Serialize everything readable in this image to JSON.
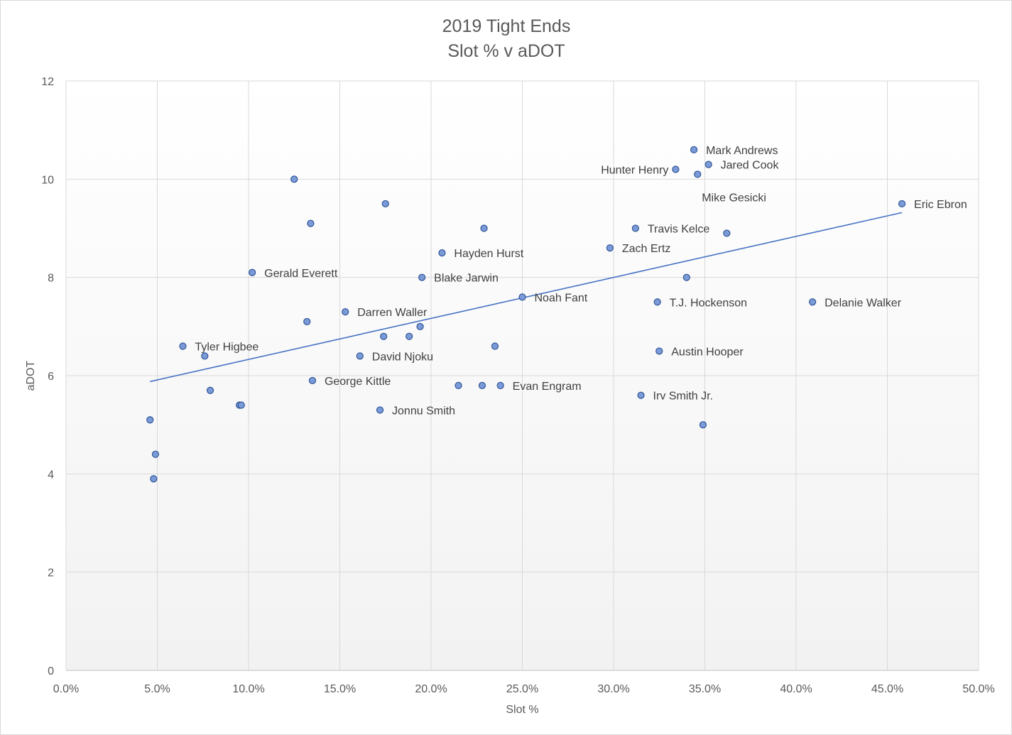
{
  "chart_data": {
    "type": "scatter",
    "title": [
      "2019 Tight Ends",
      "Slot % v aDOT"
    ],
    "xlabel": "Slot %",
    "ylabel": "aDOT",
    "xlim": [
      0,
      50
    ],
    "ylim": [
      0,
      12
    ],
    "x_ticks": [
      0,
      5,
      10,
      15,
      20,
      25,
      30,
      35,
      40,
      45,
      50
    ],
    "x_tick_labels": [
      "0.0%",
      "5.0%",
      "10.0%",
      "15.0%",
      "20.0%",
      "25.0%",
      "30.0%",
      "35.0%",
      "40.0%",
      "45.0%",
      "50.0%"
    ],
    "y_ticks": [
      0,
      2,
      4,
      6,
      8,
      10,
      12
    ],
    "y_tick_labels": [
      "0",
      "2",
      "4",
      "6",
      "8",
      "10",
      "12"
    ],
    "grid": true,
    "marker_color": "#7b9bd8",
    "marker_edge": "#2f5597",
    "trendline": {
      "type": "linear",
      "x": [
        4.6,
        45.8
      ],
      "y": [
        5.88,
        9.32
      ],
      "color": "#4472c4"
    },
    "points": [
      {
        "x": 34.4,
        "y": 10.6,
        "label": "Mark Andrews",
        "pos": "right"
      },
      {
        "x": 35.2,
        "y": 10.3,
        "label": "Jared Cook",
        "pos": "right"
      },
      {
        "x": 33.4,
        "y": 10.2,
        "label": "Hunter Henry",
        "pos": "left"
      },
      {
        "x": 34.6,
        "y": 10.1,
        "label": "Mike Gesicki",
        "pos": "below"
      },
      {
        "x": 45.8,
        "y": 9.5,
        "label": "Eric Ebron",
        "pos": "right"
      },
      {
        "x": 31.2,
        "y": 9.0,
        "label": "Travis Kelce",
        "pos": "right"
      },
      {
        "x": 36.2,
        "y": 8.9,
        "label": "",
        "pos": "right"
      },
      {
        "x": 29.8,
        "y": 8.6,
        "label": "Zach Ertz",
        "pos": "right"
      },
      {
        "x": 34.0,
        "y": 8.0,
        "label": "",
        "pos": "right"
      },
      {
        "x": 25.0,
        "y": 7.6,
        "label": "Noah Fant",
        "pos": "right"
      },
      {
        "x": 32.4,
        "y": 7.5,
        "label": "T.J. Hockenson",
        "pos": "right"
      },
      {
        "x": 40.9,
        "y": 7.5,
        "label": "Delanie Walker",
        "pos": "right"
      },
      {
        "x": 32.5,
        "y": 6.5,
        "label": "Austin Hooper",
        "pos": "right"
      },
      {
        "x": 31.5,
        "y": 5.6,
        "label": "Irv Smith Jr.",
        "pos": "right"
      },
      {
        "x": 34.9,
        "y": 5.0,
        "label": "",
        "pos": "right"
      },
      {
        "x": 12.5,
        "y": 10.0,
        "label": "",
        "pos": "right"
      },
      {
        "x": 17.5,
        "y": 9.5,
        "label": "",
        "pos": "right"
      },
      {
        "x": 13.4,
        "y": 9.1,
        "label": "",
        "pos": "right"
      },
      {
        "x": 22.9,
        "y": 9.0,
        "label": "",
        "pos": "right"
      },
      {
        "x": 20.6,
        "y": 8.5,
        "label": "Hayden Hurst",
        "pos": "right"
      },
      {
        "x": 10.2,
        "y": 8.1,
        "label": "Gerald Everett",
        "pos": "right"
      },
      {
        "x": 19.5,
        "y": 8.0,
        "label": "Blake Jarwin",
        "pos": "right"
      },
      {
        "x": 15.3,
        "y": 7.3,
        "label": "Darren Waller",
        "pos": "right"
      },
      {
        "x": 13.2,
        "y": 7.1,
        "label": "",
        "pos": "right"
      },
      {
        "x": 19.4,
        "y": 7.0,
        "label": "",
        "pos": "right"
      },
      {
        "x": 17.4,
        "y": 6.8,
        "label": "",
        "pos": "right"
      },
      {
        "x": 18.8,
        "y": 6.8,
        "label": "",
        "pos": "right"
      },
      {
        "x": 23.5,
        "y": 6.6,
        "label": "",
        "pos": "right"
      },
      {
        "x": 16.1,
        "y": 6.4,
        "label": "David Njoku",
        "pos": "right"
      },
      {
        "x": 6.4,
        "y": 6.6,
        "label": "Tyler Higbee",
        "pos": "right"
      },
      {
        "x": 7.6,
        "y": 6.4,
        "label": "",
        "pos": "right"
      },
      {
        "x": 13.5,
        "y": 5.9,
        "label": "George Kittle",
        "pos": "right"
      },
      {
        "x": 21.5,
        "y": 5.8,
        "label": "",
        "pos": "right"
      },
      {
        "x": 22.8,
        "y": 5.8,
        "label": "",
        "pos": "right"
      },
      {
        "x": 23.8,
        "y": 5.8,
        "label": "Evan Engram",
        "pos": "right"
      },
      {
        "x": 7.9,
        "y": 5.7,
        "label": "",
        "pos": "right"
      },
      {
        "x": 9.5,
        "y": 5.4,
        "label": "",
        "pos": "right"
      },
      {
        "x": 9.6,
        "y": 5.4,
        "label": "",
        "pos": "right"
      },
      {
        "x": 17.2,
        "y": 5.3,
        "label": "Jonnu Smith",
        "pos": "right"
      },
      {
        "x": 4.6,
        "y": 5.1,
        "label": "",
        "pos": "right"
      },
      {
        "x": 4.9,
        "y": 4.4,
        "label": "",
        "pos": "right"
      },
      {
        "x": 4.8,
        "y": 3.9,
        "label": "",
        "pos": "right"
      }
    ]
  }
}
